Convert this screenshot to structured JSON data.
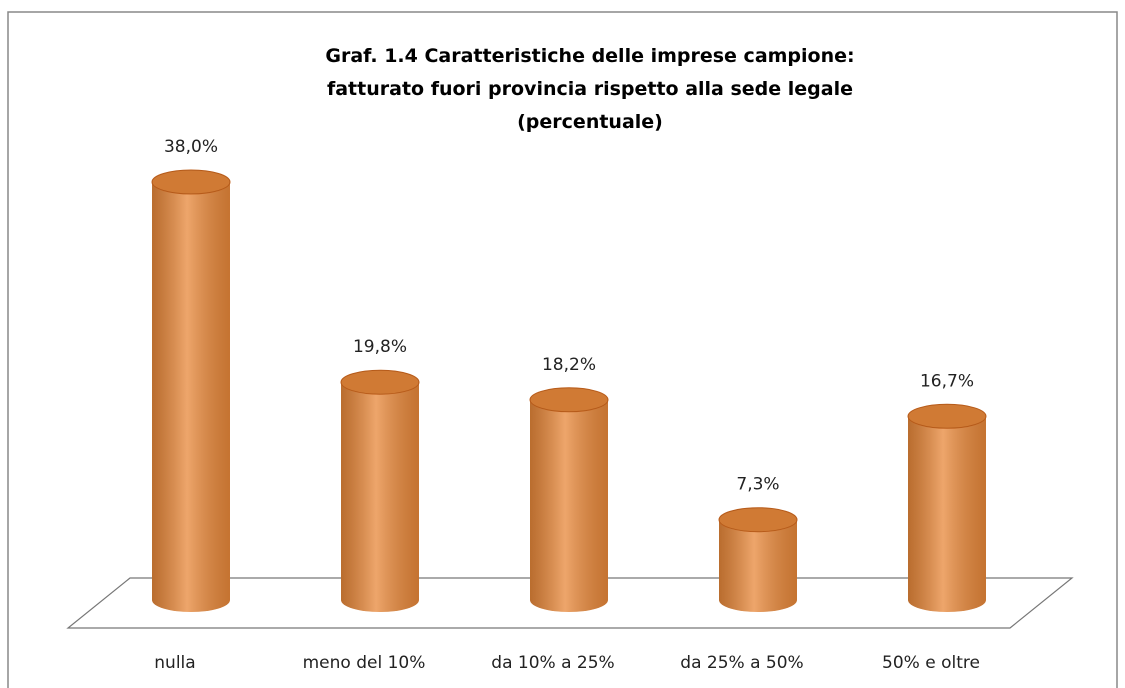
{
  "chart_data": {
    "type": "bar",
    "style": "cylinder",
    "title": "Graf. 1.4 Caratteristiche delle imprese campione: fatturato fuori provincia rispetto alla sede legale (percentuale)",
    "categories": [
      "nulla",
      "meno del 10%",
      "da 10% a 25%",
      "da 25% a 50%",
      "50% e oltre"
    ],
    "values": [
      38.0,
      19.8,
      18.2,
      7.3,
      16.7
    ],
    "value_labels": [
      "38,0%",
      "19,8%",
      "18,2%",
      "7,3%",
      "16,7%"
    ],
    "color": "#e8883a"
  }
}
